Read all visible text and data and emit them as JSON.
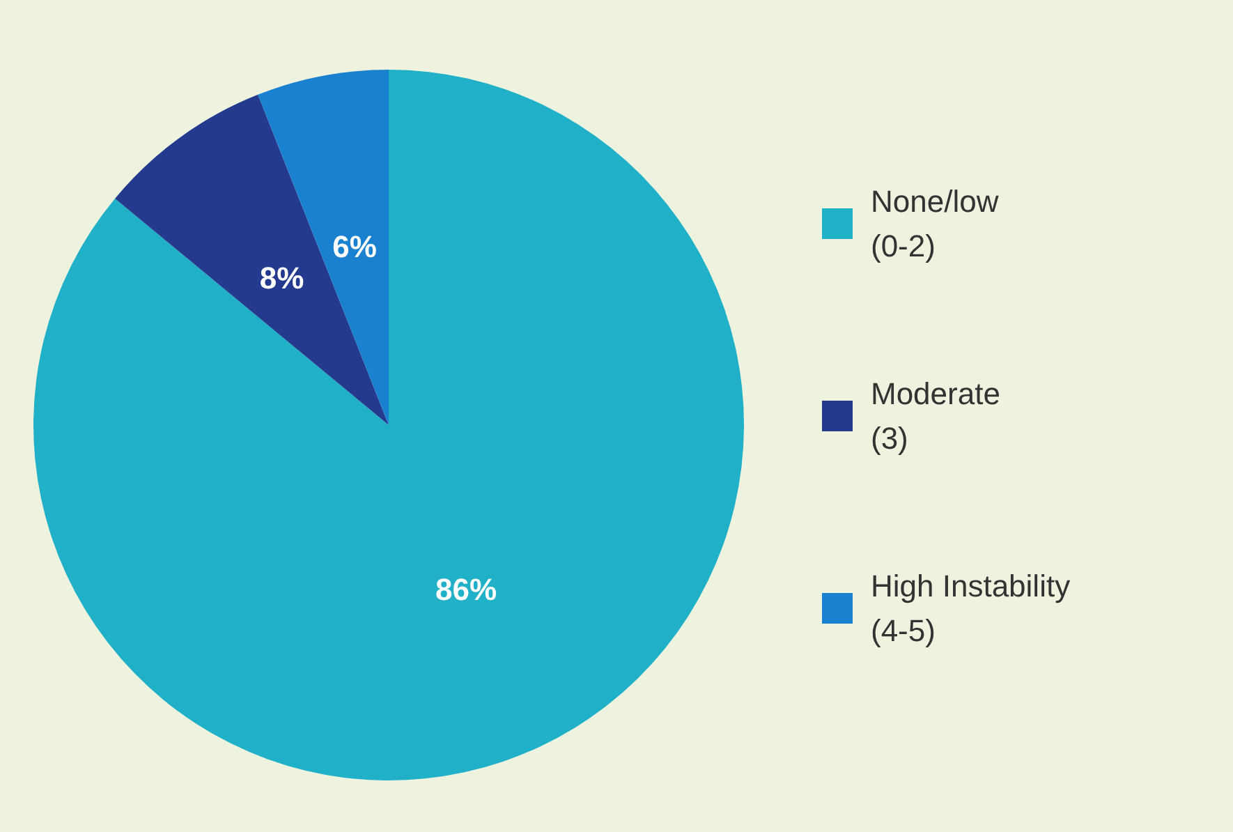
{
  "chart_data": {
    "type": "pie",
    "categories": [
      "None/low\n(0-2)",
      "Moderate\n(3)",
      "High Instability\n(4-5)"
    ],
    "values": [
      86,
      8,
      6
    ],
    "colors": [
      "#20b0c8",
      "#233a8f",
      "#1a80d0"
    ],
    "value_labels": [
      "86%",
      "8%",
      "6%"
    ],
    "legend": "right"
  }
}
